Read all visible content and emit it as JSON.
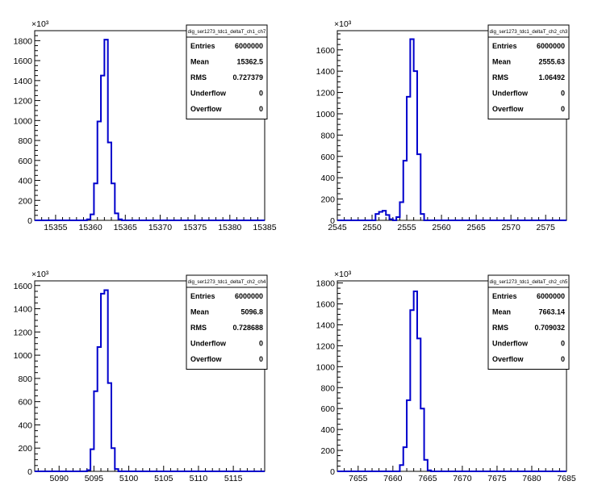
{
  "chart_data": [
    {
      "type": "histogram",
      "title": "",
      "xlabel": "",
      "ylabel": "",
      "y_exponent_label": "×10³",
      "xlim": [
        15352,
        15385
      ],
      "ylim": [
        0,
        1900
      ],
      "xticks": [
        15355,
        15360,
        15365,
        15370,
        15375,
        15380,
        15385
      ],
      "xtick_labels": [
        "15355",
        "15360",
        "15365",
        "15370",
        "15375",
        "15380",
        "15385"
      ],
      "yticks": [
        0,
        200,
        400,
        600,
        800,
        1000,
        1200,
        1400,
        1600,
        1800
      ],
      "ytick_labels": [
        "0",
        "200",
        "400",
        "600",
        "800",
        "1000",
        "1200",
        "1400",
        "1600",
        "1800"
      ],
      "bins": {
        "edges": [
          15359.5,
          15360,
          15360.5,
          15361,
          15361.5,
          15362,
          15362.5,
          15363,
          15363.5,
          15364,
          15364.5,
          15365
        ],
        "values": [
          10,
          60,
          370,
          990,
          1450,
          1810,
          780,
          370,
          70,
          10,
          0
        ]
      },
      "line_color": "#0000cc",
      "stats": {
        "name": "dig_ser1273_tdc1_deltaT_ch1_ch7",
        "rows": [
          {
            "label": "Entries",
            "value": "6000000"
          },
          {
            "label": "Mean",
            "value": "15362.5"
          },
          {
            "label": "RMS",
            "value": "0.727379"
          },
          {
            "label": "Underflow",
            "value": "0"
          },
          {
            "label": "Overflow",
            "value": "0"
          }
        ]
      }
    },
    {
      "type": "histogram",
      "title": "",
      "xlabel": "",
      "ylabel": "",
      "y_exponent_label": "×10³",
      "xlim": [
        2545,
        2578
      ],
      "ylim": [
        0,
        1780
      ],
      "xticks": [
        2545,
        2550,
        2555,
        2560,
        2565,
        2570,
        2575
      ],
      "xtick_labels": [
        "2545",
        "2550",
        "2555",
        "2560",
        "2565",
        "2570",
        "2575"
      ],
      "yticks": [
        0,
        200,
        400,
        600,
        800,
        1000,
        1200,
        1400,
        1600
      ],
      "ytick_labels": [
        "0",
        "200",
        "400",
        "600",
        "800",
        "1000",
        "1200",
        "1400",
        "1600"
      ],
      "bins": {
        "edges": [
          2550.5,
          2551,
          2551.5,
          2552,
          2552.5,
          2553,
          2553.5,
          2554,
          2554.5,
          2555,
          2555.5,
          2556,
          2556.5,
          2557,
          2557.5
        ],
        "values": [
          60,
          80,
          90,
          50,
          10,
          0,
          30,
          170,
          560,
          1160,
          1700,
          1400,
          620,
          60
        ]
      },
      "line_color": "#0000cc",
      "stats": {
        "name": "dig_ser1273_tdc1_deltaT_ch2_ch3",
        "rows": [
          {
            "label": "Entries",
            "value": "6000000"
          },
          {
            "label": "Mean",
            "value": "2555.63"
          },
          {
            "label": "RMS",
            "value": "1.06492"
          },
          {
            "label": "Underflow",
            "value": "0"
          },
          {
            "label": "Overflow",
            "value": "0"
          }
        ]
      }
    },
    {
      "type": "histogram",
      "title": "",
      "xlabel": "",
      "ylabel": "",
      "y_exponent_label": "×10³",
      "xlim": [
        5086.5,
        5119.5
      ],
      "ylim": [
        0,
        1640
      ],
      "xticks": [
        5090,
        5095,
        5100,
        5105,
        5110,
        5115
      ],
      "xtick_labels": [
        "5090",
        "5095",
        "5100",
        "5105",
        "5110",
        "5115"
      ],
      "yticks": [
        0,
        200,
        400,
        600,
        800,
        1000,
        1200,
        1400,
        1600
      ],
      "ytick_labels": [
        "0",
        "200",
        "400",
        "600",
        "800",
        "1000",
        "1200",
        "1400",
        "1600"
      ],
      "bins": {
        "edges": [
          5094,
          5094.5,
          5095,
          5095.5,
          5096,
          5096.5,
          5097,
          5097.5,
          5098,
          5098.5,
          5099
        ],
        "values": [
          10,
          190,
          690,
          1070,
          1530,
          1560,
          760,
          200,
          20,
          0
        ]
      },
      "line_color": "#0000cc",
      "stats": {
        "name": "dig_ser1273_tdc1_deltaT_ch2_ch4",
        "rows": [
          {
            "label": "Entries",
            "value": "6000000"
          },
          {
            "label": "Mean",
            "value": "5096.8"
          },
          {
            "label": "RMS",
            "value": "0.728688"
          },
          {
            "label": "Underflow",
            "value": "0"
          },
          {
            "label": "Overflow",
            "value": "0"
          }
        ]
      }
    },
    {
      "type": "histogram",
      "title": "",
      "xlabel": "",
      "ylabel": "",
      "y_exponent_label": "×10³",
      "xlim": [
        7652,
        7685
      ],
      "ylim": [
        0,
        1820
      ],
      "xticks": [
        7655,
        7660,
        7665,
        7670,
        7675,
        7680,
        7685
      ],
      "xtick_labels": [
        "7655",
        "7660",
        "7665",
        "7670",
        "7675",
        "7680",
        "7685"
      ],
      "yticks": [
        0,
        200,
        400,
        600,
        800,
        1000,
        1200,
        1400,
        1600,
        1800
      ],
      "ytick_labels": [
        "0",
        "200",
        "400",
        "600",
        "800",
        "1000",
        "1200",
        "1400",
        "1600",
        "1800"
      ],
      "bins": {
        "edges": [
          7661,
          7661.5,
          7662,
          7662.5,
          7663,
          7663.5,
          7664,
          7664.5,
          7665,
          7665.5
        ],
        "values": [
          60,
          230,
          680,
          1540,
          1720,
          1270,
          600,
          110,
          10
        ]
      },
      "line_color": "#0000cc",
      "stats": {
        "name": "dig_ser1273_tdc1_deltaT_ch2_ch5",
        "rows": [
          {
            "label": "Entries",
            "value": "6000000"
          },
          {
            "label": "Mean",
            "value": "7663.14"
          },
          {
            "label": "RMS",
            "value": "0.709032"
          },
          {
            "label": "Underflow",
            "value": "0"
          },
          {
            "label": "Overflow",
            "value": "0"
          }
        ]
      }
    }
  ]
}
